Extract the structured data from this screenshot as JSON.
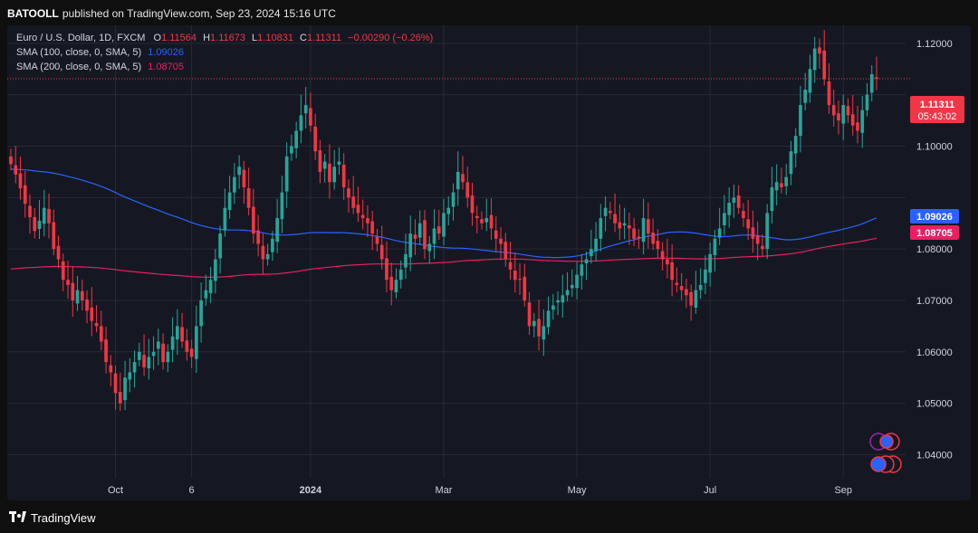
{
  "header": {
    "author": "BATOOLL",
    "published": "published on TradingView.com, Sep 23, 2024 15:16 UTC"
  },
  "legend": {
    "symbol": "Euro / U.S. Dollar, 1D, FXCM",
    "o_label": "O",
    "o_value": "1.11564",
    "h_label": "H",
    "h_value": "1.11673",
    "l_label": "L",
    "l_value": "1.10831",
    "c_label": "C",
    "c_value": "1.11311",
    "change": "−0.00290 (−0.26%)",
    "sma100_label": "SMA (100, close, 0, SMA, 5)",
    "sma100_value": "1.09026",
    "sma200_label": "SMA (200, close, 0, SMA, 5)",
    "sma200_value": "1.08705"
  },
  "price_tags": {
    "last_price": "1.11311",
    "countdown": "05:43:02",
    "sma100": "1.09026",
    "sma200": "1.08705"
  },
  "footer": {
    "brand": "TradingView"
  },
  "colors": {
    "up": "#26a69a",
    "down": "#f23645",
    "sma100": "#2962ff",
    "sma200": "#e91e63",
    "background": "#151822",
    "grid": "#262a35"
  },
  "chart_data": {
    "type": "candlestick",
    "symbol": "EURUSD",
    "ylim": [
      1.0355,
      1.1235
    ],
    "y_ticks": [
      1.04,
      1.05,
      1.06,
      1.07,
      1.08,
      1.09,
      1.1,
      1.11,
      1.12
    ],
    "y_tick_labels": [
      "1.04000",
      "1.05000",
      "1.06000",
      "1.07000",
      "1.08000",
      "",
      "1.10000",
      "",
      "1.12000"
    ],
    "x_ticks": [
      "Oct",
      "6",
      "2024",
      "Mar",
      "May",
      "Jul",
      "Sep"
    ],
    "x_tick_index": [
      22,
      38,
      63,
      91,
      119,
      147,
      175
    ],
    "last_price": 1.11311,
    "grid": true,
    "close": [
      1.0965,
      1.0945,
      1.0918,
      1.0888,
      1.0862,
      1.0835,
      1.0855,
      1.088,
      1.085,
      1.08,
      1.078,
      1.074,
      1.073,
      1.07,
      1.072,
      1.07,
      1.068,
      1.066,
      1.065,
      1.062,
      1.058,
      1.056,
      1.052,
      1.05,
      1.055,
      1.056,
      1.058,
      1.06,
      1.057,
      1.059,
      1.06,
      1.062,
      1.058,
      1.06,
      1.063,
      1.065,
      1.062,
      1.06,
      1.059,
      1.065,
      1.07,
      1.072,
      1.074,
      1.078,
      1.083,
      1.088,
      1.091,
      1.094,
      1.096,
      1.092,
      1.088,
      1.083,
      1.081,
      1.078,
      1.079,
      1.082,
      1.086,
      1.091,
      1.098,
      1.1,
      1.103,
      1.106,
      1.108,
      1.104,
      1.099,
      1.095,
      1.097,
      1.093,
      1.096,
      1.097,
      1.092,
      1.09,
      1.088,
      1.087,
      1.086,
      1.085,
      1.083,
      1.081,
      1.078,
      1.074,
      1.072,
      1.074,
      1.076,
      1.079,
      1.083,
      1.082,
      1.085,
      1.08,
      1.081,
      1.084,
      1.083,
      1.087,
      1.088,
      1.091,
      1.095,
      1.093,
      1.09,
      1.087,
      1.086,
      1.085,
      1.086,
      1.084,
      1.082,
      1.081,
      1.078,
      1.076,
      1.074,
      1.074,
      1.07,
      1.065,
      1.066,
      1.063,
      1.065,
      1.068,
      1.069,
      1.07,
      1.071,
      1.072,
      1.073,
      1.075,
      1.077,
      1.078,
      1.08,
      1.082,
      1.086,
      1.088,
      1.087,
      1.085,
      1.084,
      1.085,
      1.084,
      1.082,
      1.082,
      1.086,
      1.083,
      1.081,
      1.08,
      1.078,
      1.077,
      1.074,
      1.073,
      1.072,
      1.071,
      1.069,
      1.072,
      1.073,
      1.076,
      1.079,
      1.082,
      1.084,
      1.087,
      1.089,
      1.09,
      1.088,
      1.086,
      1.084,
      1.082,
      1.081,
      1.08,
      1.087,
      1.092,
      1.093,
      1.092,
      1.094,
      1.099,
      1.102,
      1.108,
      1.111,
      1.115,
      1.119,
      1.118,
      1.113,
      1.108,
      1.106,
      1.105,
      1.108,
      1.106,
      1.104,
      1.103,
      1.107,
      1.11,
      1.114,
      1.1131
    ]
  }
}
